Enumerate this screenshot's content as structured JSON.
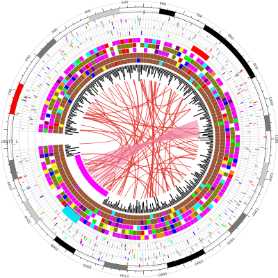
{
  "figure": {
    "type": "circos",
    "chromosome_label": "ctg77_1",
    "scale_labels": [
      "100",
      "200",
      "300",
      "400",
      "500",
      "600",
      "700",
      "800",
      "900",
      "1000",
      "1100",
      "1200",
      "1300",
      "1400",
      "1500",
      "1600",
      "1700",
      "1800",
      "1900",
      "2000",
      "2100"
    ],
    "colors": {
      "grid": "#d0d0d0",
      "ideogram_dark": "#000000",
      "ideogram_mid": "#777777",
      "ideogram_light": "#cccccc",
      "ideogram_highlight": "#ff0000",
      "track_magenta": "#ff00ff",
      "track_olive": "#808000",
      "track_brown": "#a0522d",
      "track_black": "#000000",
      "links": "#e0302a",
      "accents": [
        "#ff00ff",
        "#00ffff",
        "#ffff00",
        "#00ff00",
        "#ff0000",
        "#0000ff",
        "#ff8800",
        "#800080",
        "#808000"
      ]
    }
  }
}
